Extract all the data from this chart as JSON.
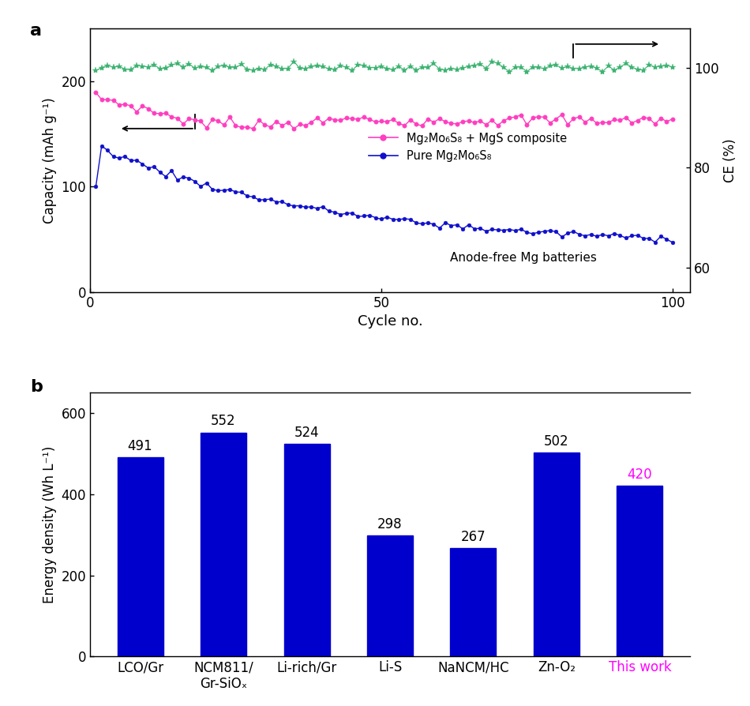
{
  "panel_a": {
    "title_label": "a",
    "xlabel": "Cycle no.",
    "ylabel_left": "Capacity (mAh g⁻¹)",
    "ylabel_right": "CE (%)",
    "xlim": [
      0,
      103
    ],
    "ylim_left": [
      0,
      250
    ],
    "ylim_right": [
      55,
      108
    ],
    "yticks_left": [
      0,
      100,
      200
    ],
    "yticks_right": [
      60,
      80,
      100
    ],
    "xticks": [
      0,
      50,
      100
    ],
    "annotation": "Anode-free Mg batteries",
    "pink_label": "Mg₂Mo₆S₈ + MgS composite",
    "blue_label": "Pure Mg₂Mo₆S₈",
    "pink_color": "#FF3EBF",
    "blue_color": "#1010CC",
    "green_color": "#3CB371"
  },
  "panel_b": {
    "title_label": "b",
    "ylabel": "Energy density (Wh L⁻¹)",
    "categories": [
      "LCO/Gr",
      "NCM811/\nGr-SiOₓ",
      "Li-rich/Gr",
      "Li-S",
      "NaNCM/HC",
      "Zn-O₂",
      "This work"
    ],
    "values": [
      491,
      552,
      524,
      298,
      267,
      502,
      420
    ],
    "bar_color": "#0000CC",
    "this_work_color": "#FF00FF",
    "ylim": [
      0,
      650
    ],
    "yticks": [
      0,
      200,
      400,
      600
    ],
    "bar_label_color": "black"
  }
}
